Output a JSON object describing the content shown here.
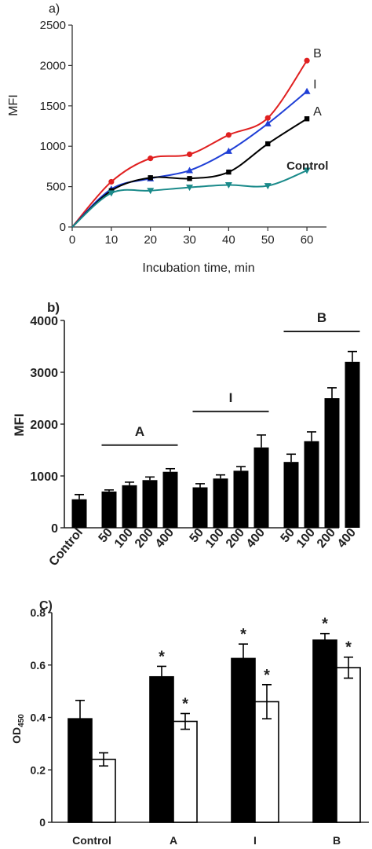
{
  "chart_data": [
    {
      "panel_label": "a)",
      "type": "line",
      "xlabel": "Incubation time, min",
      "ylabel": "MFI",
      "xlim": [
        0,
        65
      ],
      "ylim": [
        0,
        2500
      ],
      "xticks": [
        "0",
        "10",
        "20",
        "30",
        "40",
        "50",
        "60"
      ],
      "yticks": [
        "0",
        "500",
        "1000",
        "1500",
        "2000",
        "2500"
      ],
      "series": [
        {
          "name": "B",
          "color": "#e02020",
          "marker": "circle",
          "x": [
            0,
            10,
            20,
            30,
            40,
            50,
            60
          ],
          "y": [
            0,
            560,
            850,
            900,
            1140,
            1350,
            2060
          ]
        },
        {
          "name": "I",
          "color": "#1f3fd6",
          "marker": "triangle-up",
          "x": [
            0,
            10,
            20,
            30,
            40,
            50,
            60
          ],
          "y": [
            0,
            470,
            600,
            700,
            940,
            1280,
            1680
          ]
        },
        {
          "name": "A",
          "color": "#000000",
          "marker": "square",
          "x": [
            0,
            10,
            20,
            30,
            40,
            50,
            60
          ],
          "y": [
            0,
            450,
            610,
            600,
            680,
            1030,
            1340
          ]
        },
        {
          "name": "Control",
          "color": "#1a8a8a",
          "marker": "triangle-down",
          "x": [
            0,
            10,
            20,
            30,
            40,
            50,
            60
          ],
          "y": [
            0,
            420,
            450,
            490,
            520,
            510,
            700
          ]
        }
      ]
    },
    {
      "panel_label": "b)",
      "type": "bar",
      "ylabel": "MFI",
      "ylim": [
        0,
        4000
      ],
      "yticks": [
        "0",
        "1000",
        "2000",
        "3000",
        "4000"
      ],
      "categories": [
        "Control",
        "50",
        "100",
        "200",
        "400",
        "50",
        "100",
        "200",
        "400",
        "50",
        "100",
        "200",
        "400"
      ],
      "values": [
        550,
        700,
        820,
        920,
        1080,
        780,
        950,
        1100,
        1550,
        1270,
        1670,
        2500,
        3200
      ],
      "errors": [
        90,
        30,
        60,
        60,
        60,
        70,
        70,
        80,
        240,
        150,
        180,
        200,
        200
      ],
      "groups": [
        {
          "label": "A",
          "from": 1,
          "to": 4
        },
        {
          "label": "I",
          "from": 5,
          "to": 8
        },
        {
          "label": "B",
          "from": 9,
          "to": 12
        }
      ]
    },
    {
      "panel_label": "C)",
      "type": "bar",
      "ylabel": "OD",
      "ylabel_subscript": "450",
      "ylim": [
        0,
        0.8
      ],
      "yticks": [
        "0",
        "0.2",
        "0.4",
        "0.6",
        "0.8"
      ],
      "categories": [
        "Control",
        "A",
        "I",
        "B"
      ],
      "series": [
        {
          "fill": "#000000",
          "values": [
            0.395,
            0.555,
            0.625,
            0.695
          ],
          "errors": [
            0.07,
            0.04,
            0.055,
            0.025
          ],
          "marks": [
            "",
            "*",
            "*",
            "*"
          ]
        },
        {
          "fill": "#ffffff",
          "values": [
            0.24,
            0.385,
            0.46,
            0.59
          ],
          "errors": [
            0.025,
            0.03,
            0.065,
            0.04
          ],
          "marks": [
            "",
            "*",
            "*",
            "*"
          ]
        }
      ]
    }
  ]
}
